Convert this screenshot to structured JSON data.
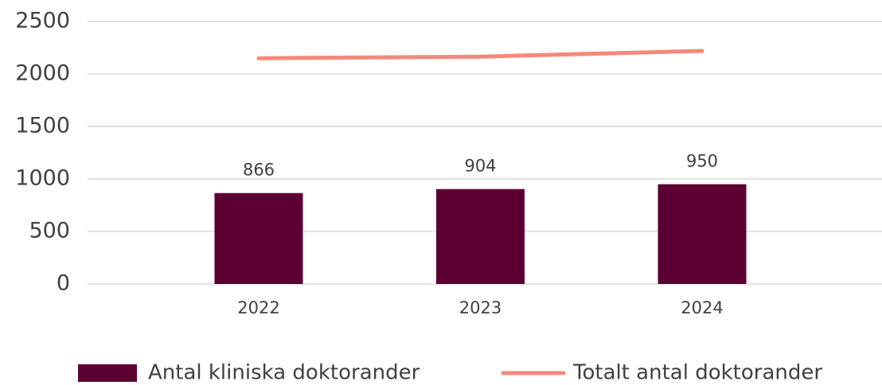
{
  "chart_data": {
    "type": "bar",
    "categories": [
      "2022",
      "2023",
      "2024"
    ],
    "series": [
      {
        "name": "Antal kliniska doktorander",
        "type": "bar",
        "color": "#5c0033",
        "values": [
          866,
          904,
          950
        ]
      },
      {
        "name": "Totalt antal doktorander",
        "type": "line",
        "color": "#f4897b",
        "values": [
          2150,
          2165,
          2220
        ]
      }
    ],
    "ylim": [
      0,
      2500
    ],
    "yticks": [
      0,
      500,
      1000,
      1500,
      2000,
      2500
    ],
    "grid": true,
    "legend": "bottom"
  }
}
